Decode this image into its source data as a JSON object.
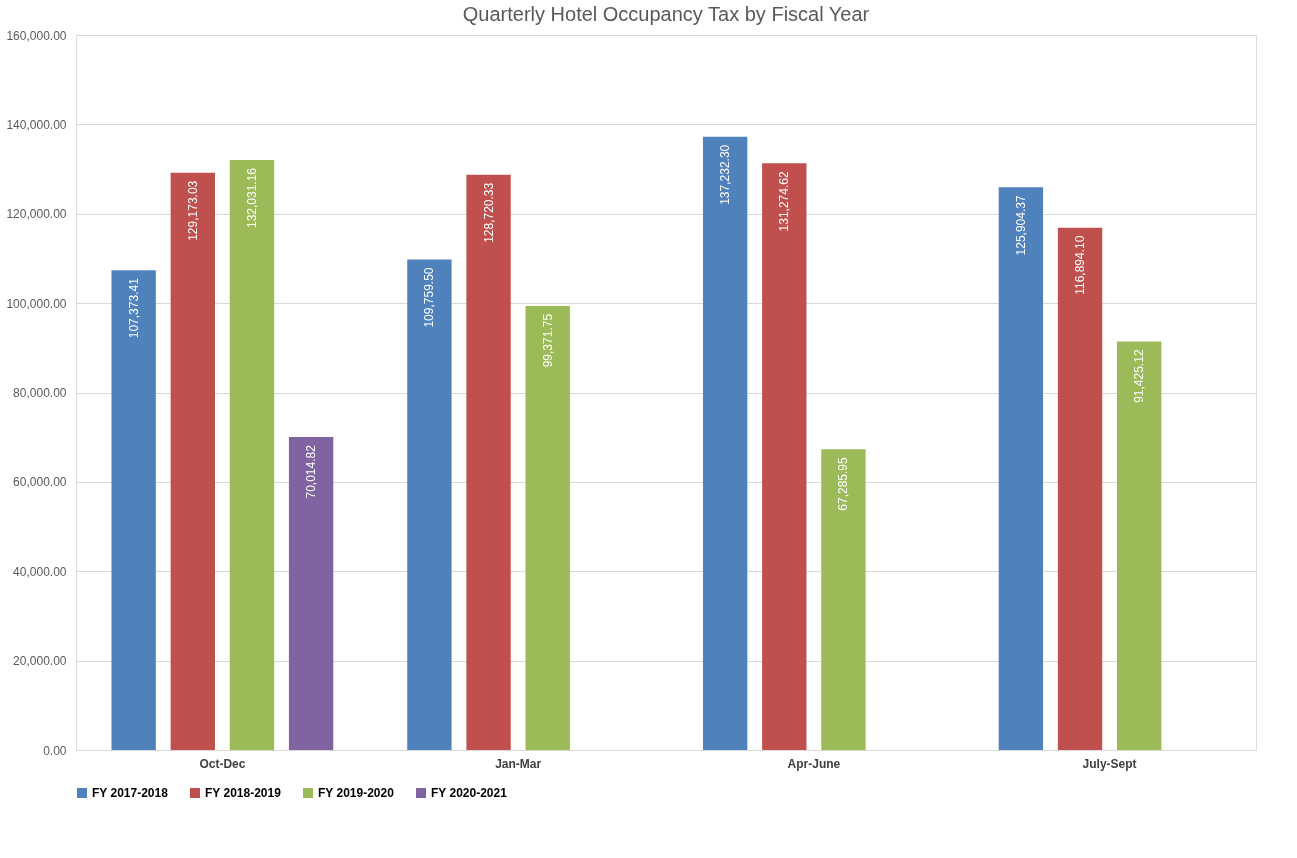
{
  "chart_data": {
    "type": "bar",
    "title": "Quarterly Hotel Occupancy Tax by Fiscal Year",
    "categories": [
      "Oct-Dec",
      "Jan-Mar",
      "Apr-June",
      "July-Sept"
    ],
    "series": [
      {
        "name": "FY 2017-2018",
        "color": "#4f81bd",
        "values": [
          107373.41,
          109759.5,
          137232.3,
          125904.37
        ],
        "value_labels": [
          "107,373.41",
          "109,759.50",
          "137,232.30",
          "125,904.37"
        ]
      },
      {
        "name": "FY 2018-2019",
        "color": "#c0504d",
        "values": [
          129173.03,
          128720.33,
          131274.62,
          116894.1
        ],
        "value_labels": [
          "129,173.03",
          "128,720.33",
          "131,274.62",
          "116,894.10"
        ]
      },
      {
        "name": "FY 2019-2020",
        "color": "#9bbb59",
        "values": [
          132031.16,
          99371.75,
          67285.95,
          91425.12
        ],
        "value_labels": [
          "132,031.16",
          "99,371.75",
          "67,285.95",
          "91,425.12"
        ]
      },
      {
        "name": "FY 2020-2021",
        "color": "#8064a2",
        "values": [
          70014.82,
          null,
          null,
          null
        ],
        "value_labels": [
          "70,014.82",
          null,
          null,
          null
        ]
      }
    ],
    "ylim": [
      0,
      160000
    ],
    "yticks": [
      {
        "value": 0,
        "label": "0.00"
      },
      {
        "value": 20000,
        "label": "20,000.00"
      },
      {
        "value": 40000,
        "label": "40,000.00"
      },
      {
        "value": 60000,
        "label": "60,000.00"
      },
      {
        "value": 80000,
        "label": "80,000.00"
      },
      {
        "value": 100000,
        "label": "100,000.00"
      },
      {
        "value": 120000,
        "label": "120,000.00"
      },
      {
        "value": 140000,
        "label": "140,000.00"
      },
      {
        "value": 160000,
        "label": "160,000.00"
      }
    ],
    "grid": "y",
    "legend": "bottom"
  }
}
